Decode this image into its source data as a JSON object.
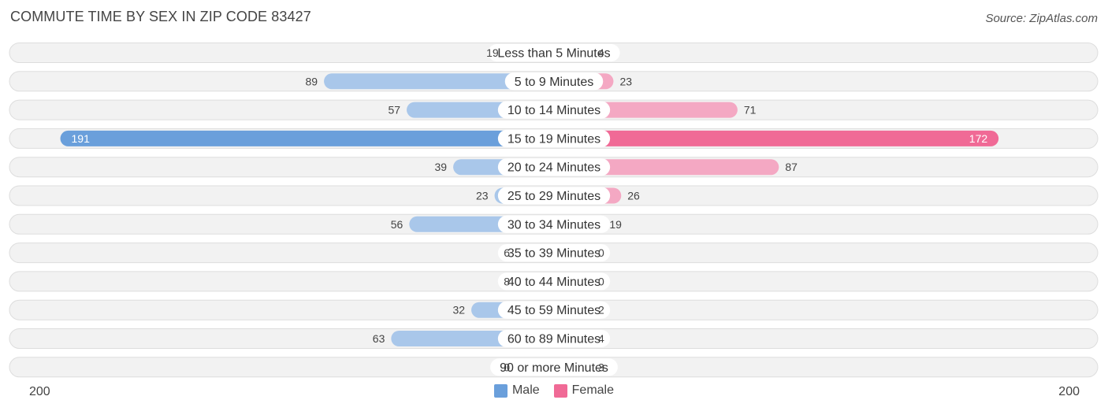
{
  "title": "COMMUTE TIME BY SEX IN ZIP CODE 83427",
  "source": "Source: ZipAtlas.com",
  "colors": {
    "male_light": "#a9c7ea",
    "male_dark": "#6a9fdb",
    "female_light": "#f4a8c3",
    "female_dark": "#f06a96",
    "row_bg": "#efefef",
    "row_border": "#dddddd"
  },
  "chart_data": {
    "type": "bar",
    "orientation": "diverging-horizontal",
    "categories": [
      "Less than 5 Minutes",
      "5 to 9 Minutes",
      "10 to 14 Minutes",
      "15 to 19 Minutes",
      "20 to 24 Minutes",
      "25 to 29 Minutes",
      "30 to 34 Minutes",
      "35 to 39 Minutes",
      "40 to 44 Minutes",
      "45 to 59 Minutes",
      "60 to 89 Minutes",
      "90 or more Minutes"
    ],
    "series": [
      {
        "name": "Male",
        "values": [
          19,
          89,
          57,
          191,
          39,
          23,
          56,
          6,
          8,
          32,
          63,
          0
        ]
      },
      {
        "name": "Female",
        "values": [
          4,
          23,
          71,
          172,
          87,
          26,
          19,
          0,
          0,
          2,
          4,
          3
        ]
      }
    ],
    "xlim": [
      -200,
      200
    ],
    "axis_left_label": "200",
    "axis_right_label": "200",
    "legend_position": "bottom-center"
  }
}
